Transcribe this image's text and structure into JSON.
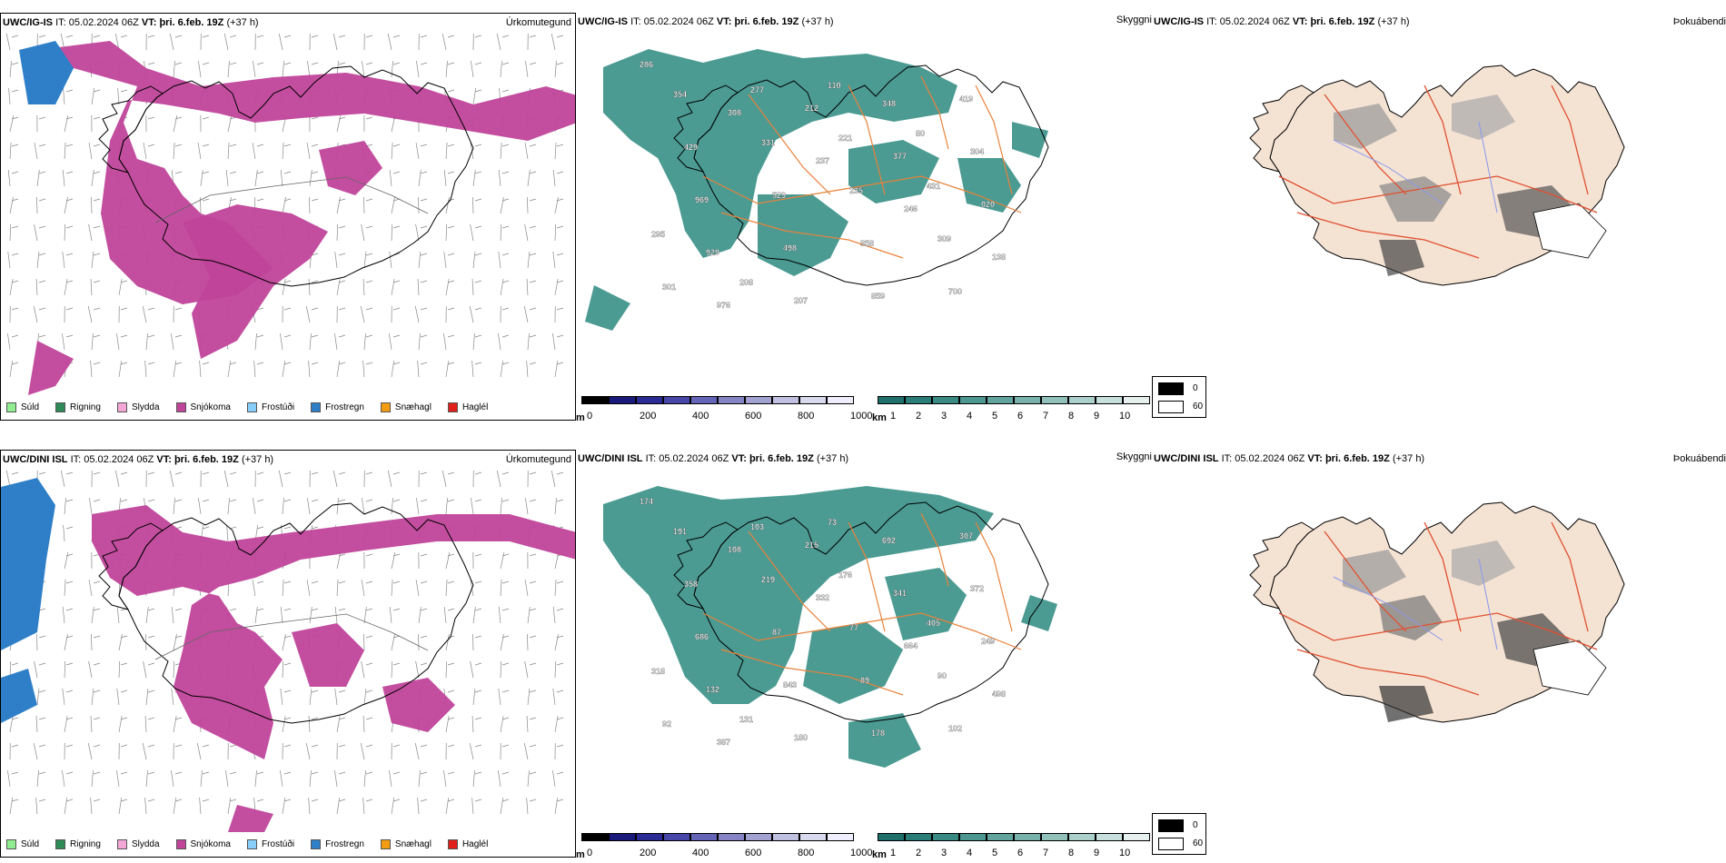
{
  "rows": [
    {
      "panels": [
        {
          "model": "UWC/IG-IS",
          "it_label": "IT:",
          "it": "05.02.2024 06Z",
          "vt_label": "VT:",
          "vt": "þri. 6.feb. 19Z",
          "lead": "(+37 h)",
          "title": "Úrkomutegund"
        },
        {
          "model": "UWC/IG-IS",
          "it_label": "IT:",
          "it": "05.02.2024 06Z",
          "vt_label": "VT:",
          "vt": "þri. 6.feb. 19Z",
          "lead": "(+37 h)",
          "title": "Skyggni"
        },
        {
          "model": "UWC/IG-IS",
          "it_label": "IT:",
          "it": "05.02.2024 06Z",
          "vt_label": "VT:",
          "vt": "þri. 6.feb. 19Z",
          "lead": "(+37 h)",
          "title": "Þokuábendi"
        }
      ]
    },
    {
      "panels": [
        {
          "model": "UWC/DINI ISL",
          "it_label": "IT:",
          "it": "05.02.2024 06Z",
          "vt_label": "VT:",
          "vt": "þri. 6.feb. 19Z",
          "lead": "(+37 h)",
          "title": "Úrkomutegund"
        },
        {
          "model": "UWC/DINI ISL",
          "it_label": "IT:",
          "it": "05.02.2024 06Z",
          "vt_label": "VT:",
          "vt": "þri. 6.feb. 19Z",
          "lead": "(+37 h)",
          "title": "Skyggni"
        },
        {
          "model": "UWC/DINI ISL",
          "it_label": "IT:",
          "it": "05.02.2024 06Z",
          "vt_label": "VT:",
          "vt": "þri. 6.feb. 19Z",
          "lead": "(+37 h)",
          "title": "Þokuábendi"
        }
      ]
    }
  ],
  "precip_legend": [
    {
      "label": "Súld",
      "color": "#90ee90"
    },
    {
      "label": "Rigning",
      "color": "#2e8b57"
    },
    {
      "label": "Slydda",
      "color": "#f4a6d7"
    },
    {
      "label": "Snjókoma",
      "color": "#c0459a"
    },
    {
      "label": "Frostúði",
      "color": "#87cefa"
    },
    {
      "label": "Frostregn",
      "color": "#2f7fc8"
    },
    {
      "label": "Snæhagl",
      "color": "#f39c12"
    },
    {
      "label": "Haglél",
      "color": "#e0201a"
    }
  ],
  "elev_bar": {
    "unit": "m",
    "ticks": [
      "0",
      "200",
      "400",
      "600",
      "800",
      "1000"
    ],
    "colors": [
      "#000000",
      "#1a1a7a",
      "#2b2b95",
      "#4747aa",
      "#6565b8",
      "#8585c6",
      "#a3a3d3",
      "#c0c0e0",
      "#dadaee",
      "#eeeeff"
    ]
  },
  "vis_bar": {
    "unit": "km",
    "ticks": [
      "1",
      "2",
      "3",
      "4",
      "5",
      "6",
      "7",
      "8",
      "9",
      "10"
    ],
    "colors": [
      "#1f6f6a",
      "#2b7d77",
      "#3a8a84",
      "#4d9791",
      "#62a49e",
      "#79b2ad",
      "#92c1bc",
      "#acd0cc",
      "#c8e0dd",
      "#e6f0ef"
    ]
  },
  "fog_legend": [
    {
      "label": "0",
      "color": "#000000"
    },
    {
      "label": "60",
      "color": "#ffffff"
    }
  ],
  "colors": {
    "land": "#f4e2d3",
    "snow": "#c0459a",
    "frostregn": "#2f7fc8",
    "vis": "#2b8a80",
    "roads": "#e8823a",
    "border": "#e05030",
    "rivers": "#8899ee"
  },
  "vis_labels_top": [
    "286",
    "308",
    "237",
    "246",
    "138",
    "976",
    "212",
    "377",
    "020",
    "929",
    "207",
    "348",
    "304",
    "969",
    "498",
    "859",
    "419",
    "429",
    "529",
    "358",
    "700",
    "354",
    "331",
    "235",
    "309",
    "301",
    "277",
    "221",
    "431",
    "295",
    "208",
    "110",
    "80"
  ],
  "vis_labels_bottom": [
    "174",
    "108",
    "332",
    "664",
    "498",
    "387",
    "215",
    "341",
    "249",
    "132",
    "180",
    "692",
    "372",
    "686",
    "843",
    "178",
    "307",
    "358",
    "87",
    "89",
    "102",
    "191",
    "219",
    "77",
    "90",
    "92",
    "103",
    "176",
    "405",
    "318",
    "131",
    "73"
  ]
}
